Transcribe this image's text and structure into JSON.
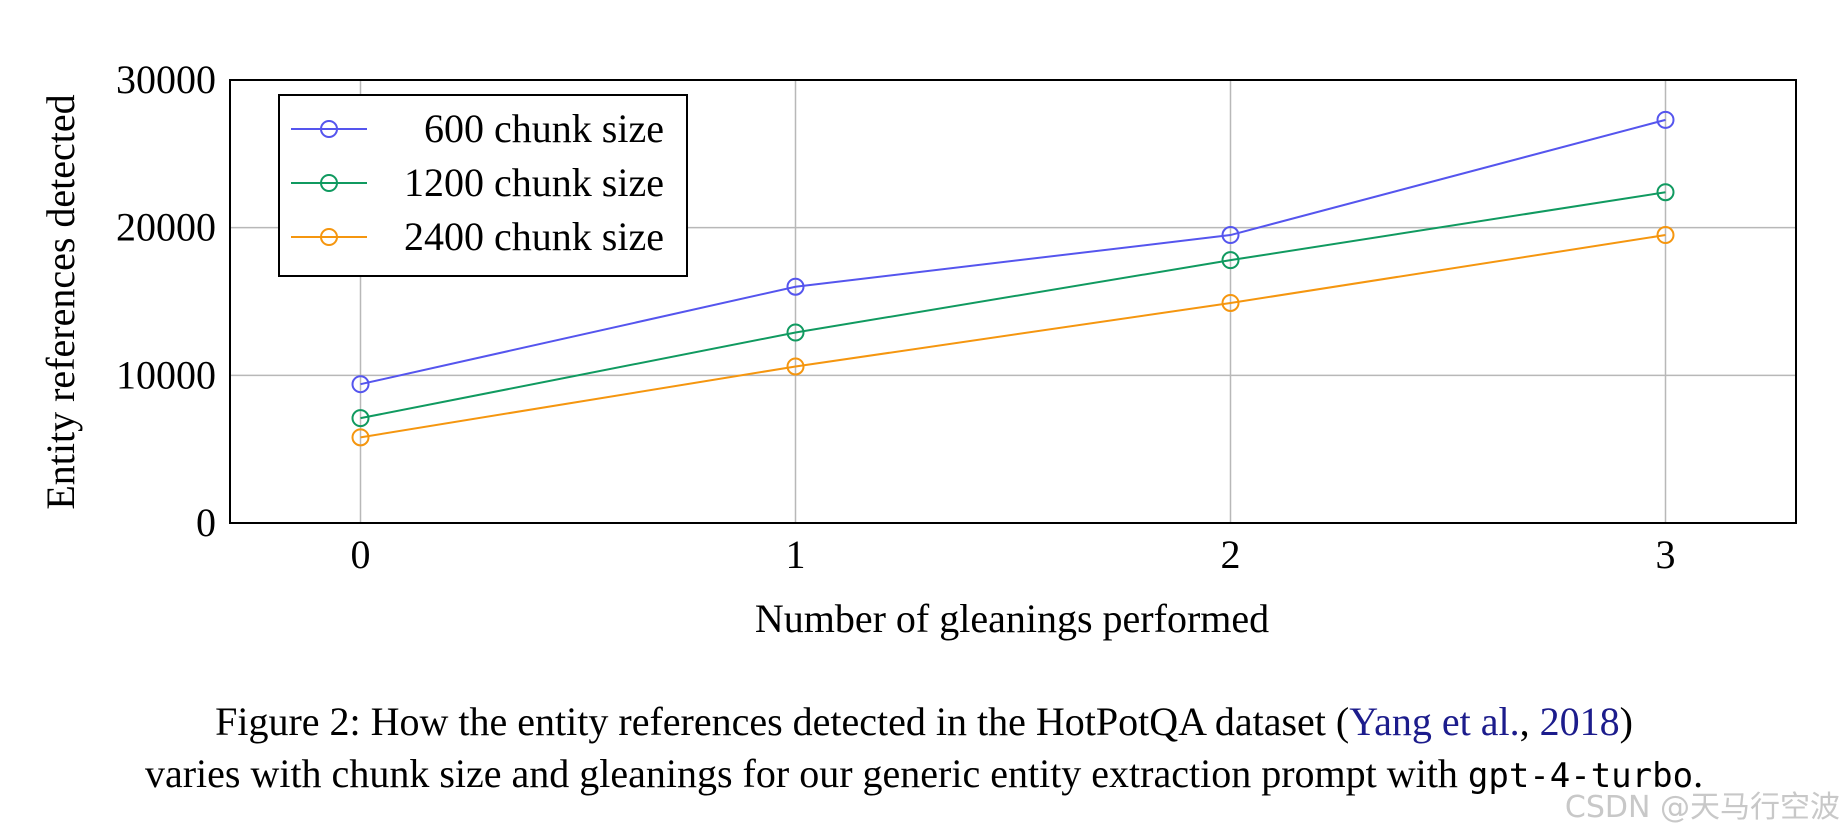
{
  "chart_data": {
    "type": "line",
    "x": [
      0,
      1,
      2,
      3
    ],
    "xticks": [
      "0",
      "1",
      "2",
      "3"
    ],
    "yticks": [
      "0",
      "10000",
      "20000",
      "30000"
    ],
    "xlim": [
      -0.3,
      3.3
    ],
    "ylim": [
      0,
      30000
    ],
    "xlabel": "Number of gleanings performed",
    "ylabel": "Entity references detected",
    "grid": true,
    "legend_position": "top-left",
    "series": [
      {
        "name": "600 chunk size",
        "color": "#5555ee",
        "values": [
          9400,
          16000,
          19500,
          27300
        ]
      },
      {
        "name": "1200 chunk size",
        "color": "#109a60",
        "values": [
          7100,
          12900,
          17800,
          22400
        ]
      },
      {
        "name": "2400 chunk size",
        "color": "#f5960f",
        "values": [
          5800,
          10600,
          14900,
          19500
        ]
      }
    ]
  },
  "caption": {
    "line1_prefix": "Figure 2: How the entity references detected in the HotPotQA dataset (",
    "line1_cite_authors": "Yang et al.",
    "line1_sep": ", ",
    "line1_cite_year": "2018",
    "line1_suffix": ")",
    "line2_prefix": "varies with chunk size and gleanings for our generic entity extraction prompt with ",
    "line2_code": "gpt-4-turbo",
    "line2_suffix": "."
  },
  "watermark": "CSDN @天马行空波"
}
